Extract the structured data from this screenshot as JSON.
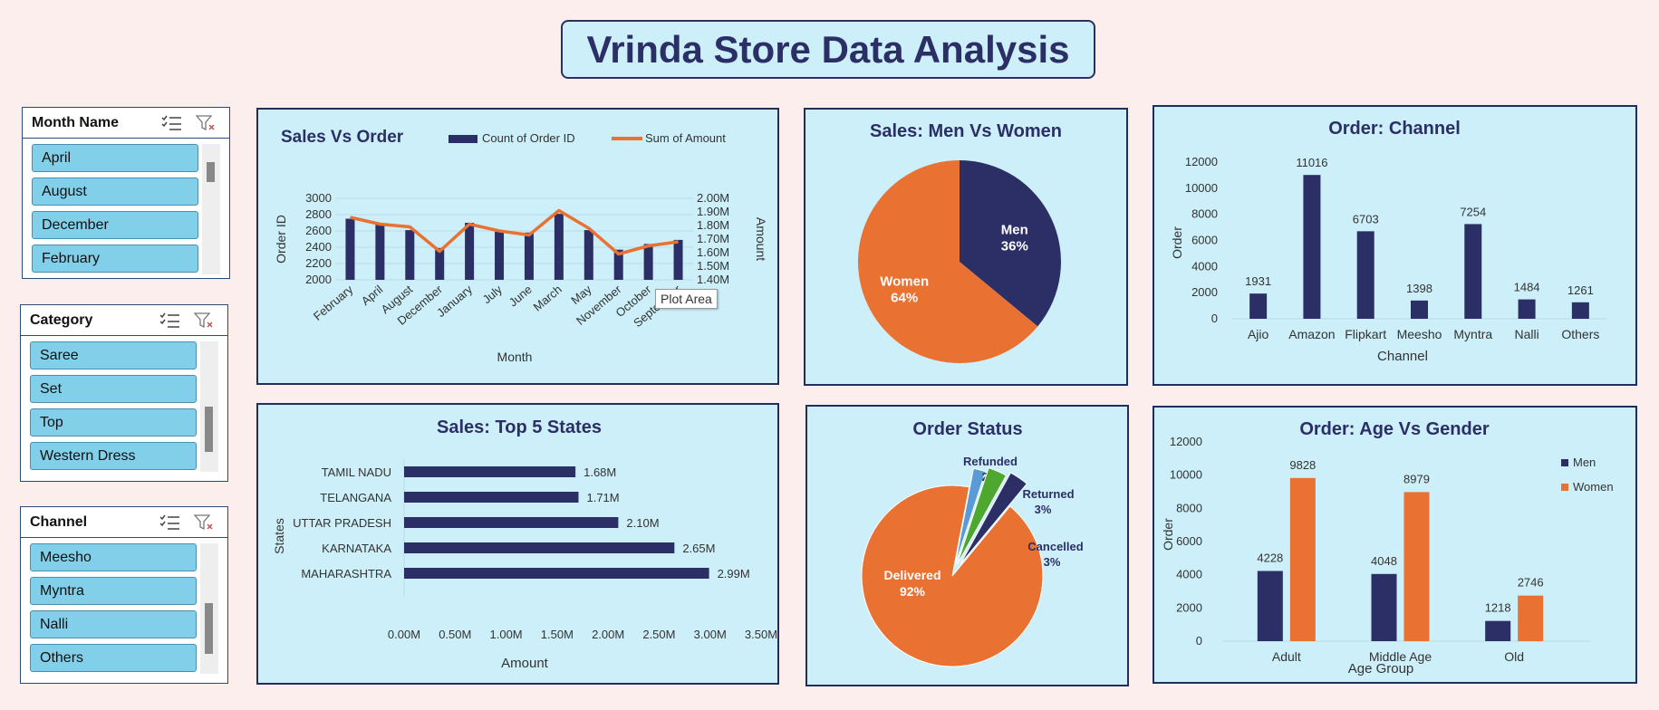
{
  "dashboard": {
    "title": "Vrinda Store Data Analysis"
  },
  "colors": {
    "navy": "#2b2f66",
    "orange": "#e97132",
    "blue": "#5b9bd5",
    "green": "#4ea72e",
    "panel": "#cceff9"
  },
  "slicers": [
    {
      "title": "Month Name",
      "items": [
        "April",
        "August",
        "December",
        "February"
      ]
    },
    {
      "title": "Category",
      "items": [
        "Saree",
        "Set",
        "Top",
        "Western Dress"
      ]
    },
    {
      "title": "Channel",
      "items": [
        "Meesho",
        "Myntra",
        "Nalli",
        "Others"
      ]
    }
  ],
  "tooltip": "Plot Area",
  "chart_data": [
    {
      "id": "sales-vs-order",
      "type": "bar+line",
      "title": "Sales Vs Order",
      "categories": [
        "February",
        "April",
        "August",
        "December",
        "January",
        "July",
        "June",
        "March",
        "May",
        "November",
        "October",
        "September"
      ],
      "series": [
        {
          "name": "Count of Order ID",
          "type": "bar",
          "axis": "left",
          "values": [
            2750,
            2680,
            2610,
            2390,
            2700,
            2590,
            2580,
            2810,
            2610,
            2370,
            2440,
            2490
          ]
        },
        {
          "name": "Sum of Amount",
          "type": "line",
          "axis": "right",
          "values": [
            1.86,
            1.81,
            1.79,
            1.61,
            1.81,
            1.76,
            1.73,
            1.91,
            1.78,
            1.59,
            1.65,
            1.68
          ]
        }
      ],
      "xlabel": "Month",
      "ylabel": "Order ID",
      "y2label": "Amount",
      "ylim": [
        2000,
        3000
      ],
      "yticks": [
        "3000",
        "2800",
        "2600",
        "2400",
        "2200",
        "2000"
      ],
      "y2lim": [
        1.4,
        2.0
      ],
      "y2ticks": [
        "2.00M",
        "1.90M",
        "1.80M",
        "1.70M",
        "1.60M",
        "1.50M",
        "1.40M"
      ],
      "legend": "top"
    },
    {
      "id": "men-vs-women",
      "type": "pie",
      "title": "Sales: Men Vs Women",
      "slices": [
        {
          "name": "Men",
          "value": 36,
          "label": "36%"
        },
        {
          "name": "Women",
          "value": 64,
          "label": "64%"
        }
      ]
    },
    {
      "id": "order-channel",
      "type": "bar",
      "title": "Order: Channel",
      "categories": [
        "Ajio",
        "Amazon",
        "Flipkart",
        "Meesho",
        "Myntra",
        "Nalli",
        "Others"
      ],
      "values": [
        1931,
        11016,
        6703,
        1398,
        7254,
        1484,
        1261
      ],
      "value_labels": [
        "1931",
        "11016",
        "6703",
        "1398",
        "7254",
        "1484",
        "1261"
      ],
      "xlabel": "Channel",
      "ylabel": "Order",
      "ylim": [
        0,
        12000
      ],
      "yticks": [
        "12000",
        "10000",
        "8000",
        "6000",
        "4000",
        "2000",
        "0"
      ]
    },
    {
      "id": "top-5-states",
      "type": "bar-horizontal",
      "title": "Sales: Top 5 States",
      "categories": [
        "TAMIL NADU",
        "TELANGANA",
        "UTTAR PRADESH",
        "KARNATAKA",
        "MAHARASHTRA"
      ],
      "values": [
        1.68,
        1.71,
        2.1,
        2.65,
        2.99
      ],
      "value_labels": [
        "1.68M",
        "1.71M",
        "2.10M",
        "2.65M",
        "2.99M"
      ],
      "xlabel": "Amount",
      "ylabel": "States",
      "xlim": [
        0,
        3.5
      ],
      "xticks": [
        "0.00M",
        "0.50M",
        "1.00M",
        "1.50M",
        "2.00M",
        "2.50M",
        "3.00M",
        "3.50M"
      ]
    },
    {
      "id": "order-status",
      "type": "pie",
      "title": "Order Status",
      "slices": [
        {
          "name": "Delivered",
          "value": 92,
          "label": "92%"
        },
        {
          "name": "Refunded",
          "value": 2,
          "label": "2%"
        },
        {
          "name": "Returned",
          "value": 3,
          "label": "3%"
        },
        {
          "name": "Cancelled",
          "value": 3,
          "label": "3%"
        }
      ]
    },
    {
      "id": "age-vs-gender",
      "type": "bar",
      "title": "Order: Age Vs Gender",
      "categories": [
        "Adult",
        "Middle Age",
        "Old"
      ],
      "series": [
        {
          "name": "Men",
          "values": [
            4228,
            4048,
            1218
          ]
        },
        {
          "name": "Women",
          "values": [
            9828,
            8979,
            2746
          ]
        }
      ],
      "xlabel": "Age Group",
      "ylabel": "Order",
      "ylim": [
        0,
        12000
      ],
      "yticks": [
        "12000",
        "10000",
        "8000",
        "6000",
        "4000",
        "2000",
        "0"
      ],
      "legend": "right"
    }
  ]
}
